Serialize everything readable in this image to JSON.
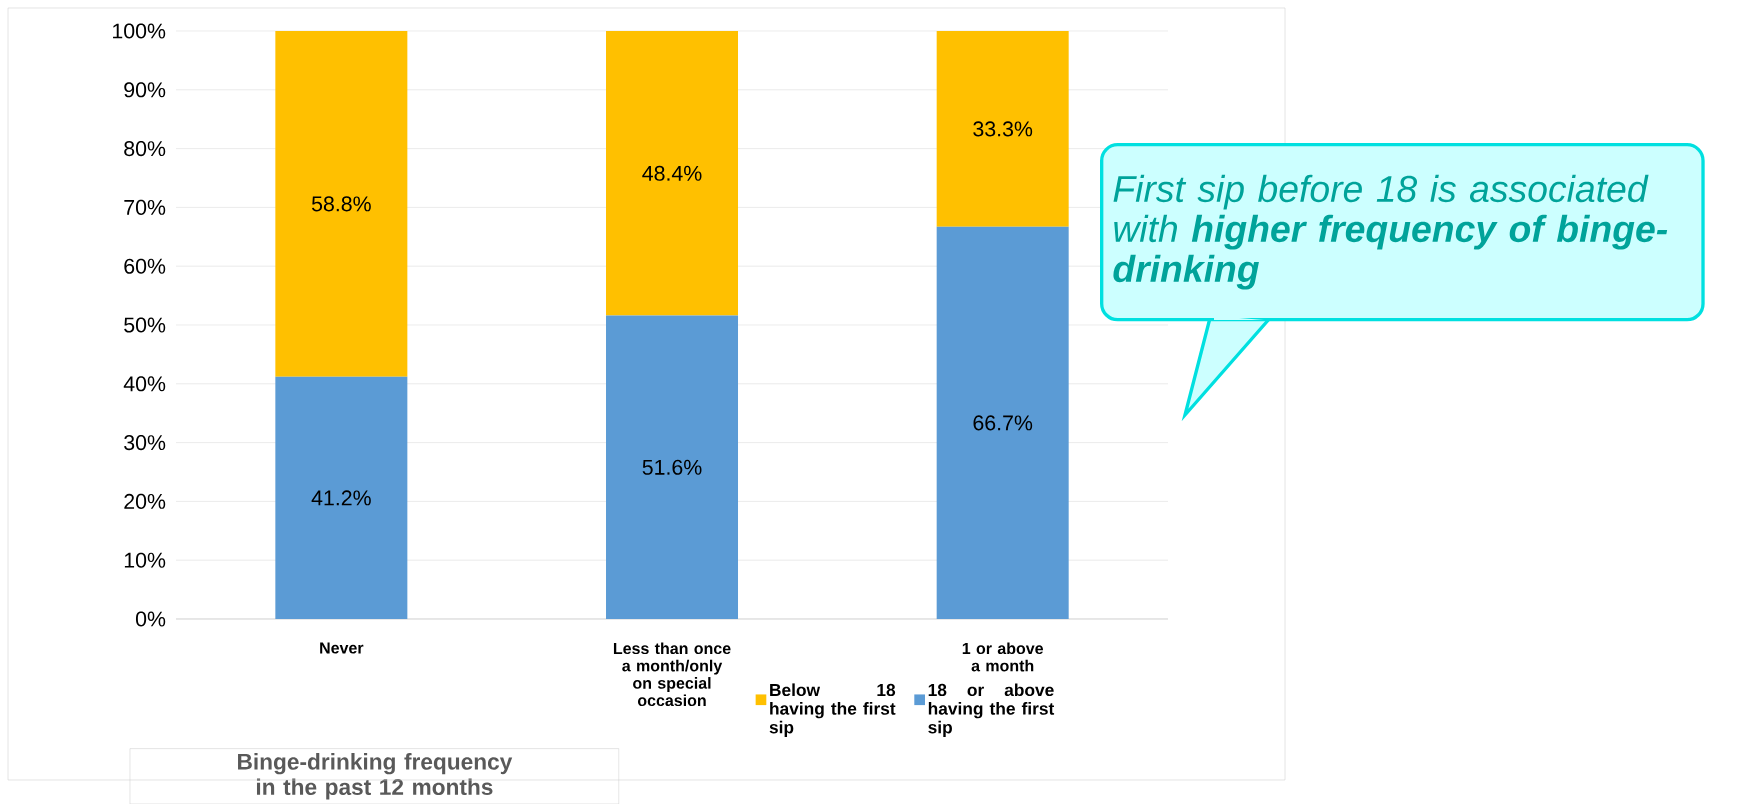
{
  "chart_data": {
    "type": "bar",
    "stacked": true,
    "xlabel": "Binge-drinking frequency in the past 12 months",
    "categories": [
      "Never",
      "Less than once a month/only on special occasion",
      "1 or above a month"
    ],
    "series": [
      {
        "name": "18 or above having the first sip",
        "color": "#5b9bd5",
        "values": [
          41.2,
          51.6,
          66.7
        ],
        "value_labels": [
          "41.2%",
          "51.6%",
          "66.7%"
        ]
      },
      {
        "name": "Below 18 having the first sip",
        "color": "#ffc000",
        "values": [
          58.8,
          48.4,
          33.3
        ],
        "value_labels": [
          "58.8%",
          "48.4%",
          "33.3%"
        ]
      }
    ],
    "ylim": [
      0,
      100
    ],
    "yticks": [
      {
        "value": 0,
        "label": "0%"
      },
      {
        "value": 10,
        "label": "10%"
      },
      {
        "value": 20,
        "label": "20%"
      },
      {
        "value": 30,
        "label": "30%"
      },
      {
        "value": 40,
        "label": "40%"
      },
      {
        "value": 50,
        "label": "50%"
      },
      {
        "value": 60,
        "label": "60%"
      },
      {
        "value": 70,
        "label": "70%"
      },
      {
        "value": 80,
        "label": "80%"
      },
      {
        "value": 90,
        "label": "90%"
      },
      {
        "value": 100,
        "label": "100%"
      }
    ],
    "grid": "y",
    "legend": "bottom",
    "annotations": [
      "First sip before 18 is associated with **higher frequency of binge-drinking**"
    ]
  }
}
